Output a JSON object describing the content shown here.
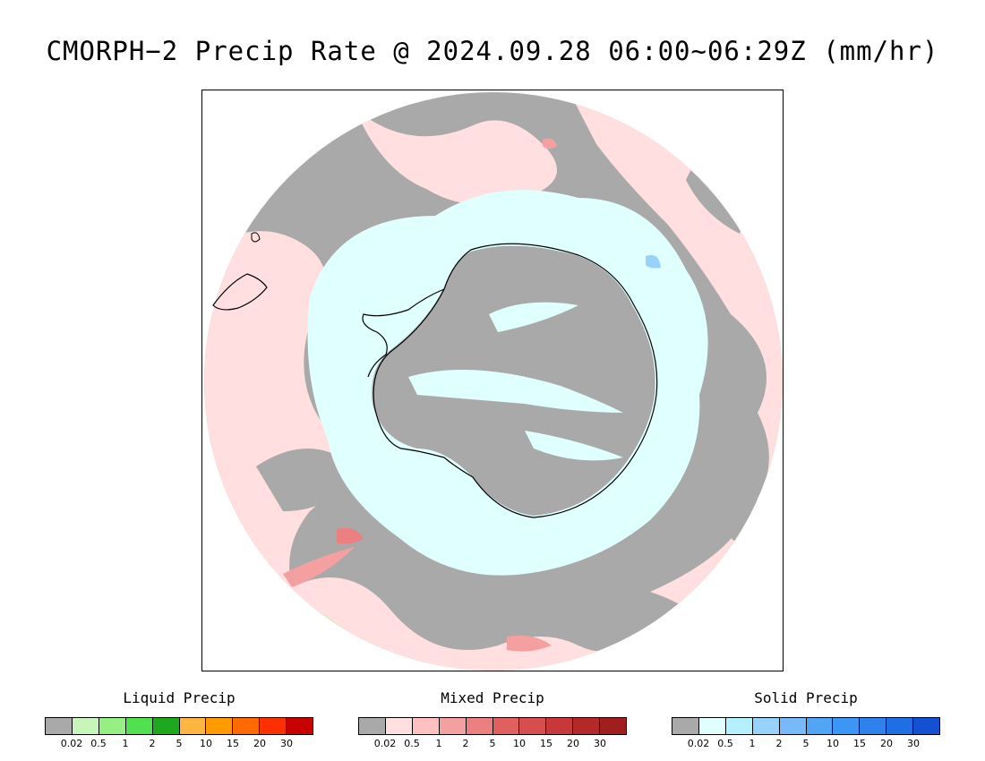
{
  "title": "CMORPH−2 Precip Rate @ 2024.09.28 06:00~06:29Z (mm/hr)",
  "legends": [
    {
      "title": "Liquid Precip",
      "colors": [
        "#a9a9a9",
        "#c8f5b8",
        "#96ef83",
        "#50e050",
        "#1ea81e",
        "#ffb641",
        "#ff9a00",
        "#ff6a00",
        "#ff3000",
        "#c80000"
      ],
      "ticks": [
        "0.02",
        "0.5",
        "1",
        "2",
        "5",
        "10",
        "15",
        "20",
        "30"
      ]
    },
    {
      "title": "Mixed Precip",
      "colors": [
        "#a9a9a9",
        "#ffdfdf",
        "#ffc0c0",
        "#f5a0a0",
        "#ec8080",
        "#e06060",
        "#d84e4e",
        "#c83838",
        "#b42828",
        "#a01e1e"
      ],
      "ticks": [
        "0.02",
        "0.5",
        "1",
        "2",
        "5",
        "10",
        "15",
        "20",
        "30"
      ]
    },
    {
      "title": "Solid Precip",
      "colors": [
        "#a9a9a9",
        "#e0ffff",
        "#b4f0ff",
        "#96d2fa",
        "#78b9fa",
        "#50a5f5",
        "#3c96f5",
        "#2d82eb",
        "#1e6ee6",
        "#1450d2"
      ],
      "ticks": [
        "0.02",
        "0.5",
        "1",
        "2",
        "5",
        "10",
        "15",
        "20",
        "30"
      ]
    }
  ],
  "map": {
    "projection": "south-polar-stereographic",
    "no_precip_color": "#a9a9a9",
    "mixed_light_color": "#ffdfdf",
    "solid_light_color": "#e0ffff",
    "liquid_light_color": "#c8f5b8",
    "coastline_color": "#000000"
  }
}
